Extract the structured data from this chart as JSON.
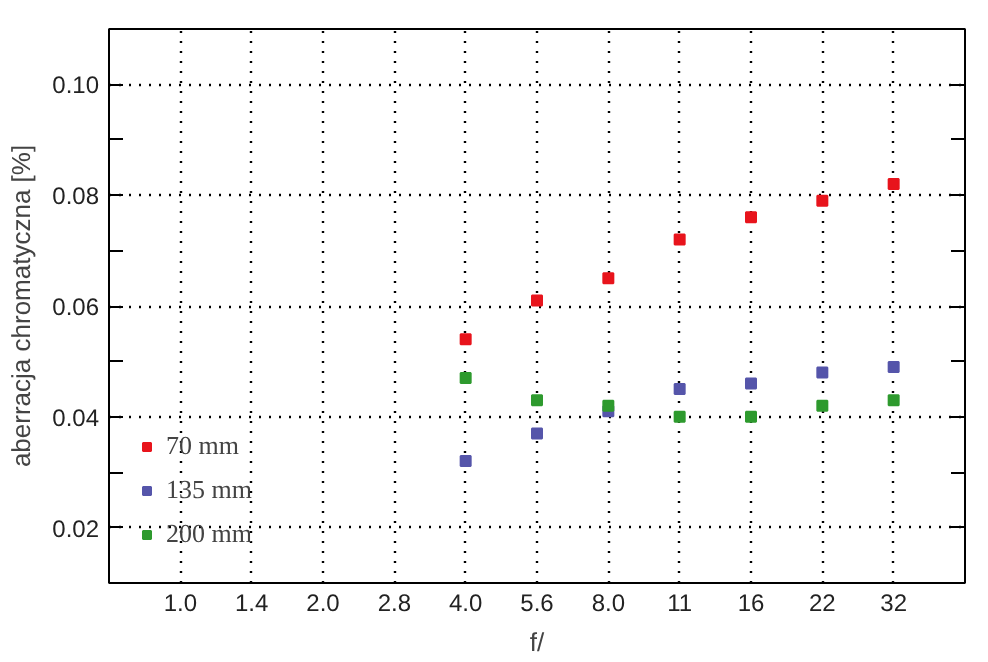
{
  "chart_data": {
    "type": "scatter",
    "xlabel": "f/",
    "ylabel": "aberracja chromatyczna [%]",
    "categories": [
      "1.0",
      "1.4",
      "2.0",
      "2.8",
      "4.0",
      "5.6",
      "8.0",
      "11",
      "16",
      "22",
      "32"
    ],
    "series": [
      {
        "name": "70 mm",
        "color": "#e8141c",
        "values": [
          null,
          null,
          null,
          null,
          0.054,
          0.061,
          0.065,
          0.072,
          0.076,
          0.079,
          0.082
        ]
      },
      {
        "name": "135 mm",
        "color": "#5555aa",
        "values": [
          null,
          null,
          null,
          null,
          0.032,
          0.037,
          0.041,
          0.045,
          0.046,
          0.048,
          0.049
        ]
      },
      {
        "name": "200 mm",
        "color": "#2e9a2e",
        "values": [
          null,
          null,
          null,
          null,
          0.047,
          0.043,
          0.042,
          0.04,
          0.04,
          0.042,
          0.043
        ]
      }
    ],
    "ylim": [
      0.01,
      0.11
    ],
    "yticks": [
      {
        "value": 0.02,
        "label": "0.02"
      },
      {
        "value": 0.04,
        "label": "0.04"
      },
      {
        "value": 0.06,
        "label": "0.06"
      },
      {
        "value": 0.08,
        "label": "0.08"
      },
      {
        "value": 0.1,
        "label": "0.10"
      }
    ],
    "grid": true,
    "legend": "bottom left",
    "marker": "square"
  }
}
